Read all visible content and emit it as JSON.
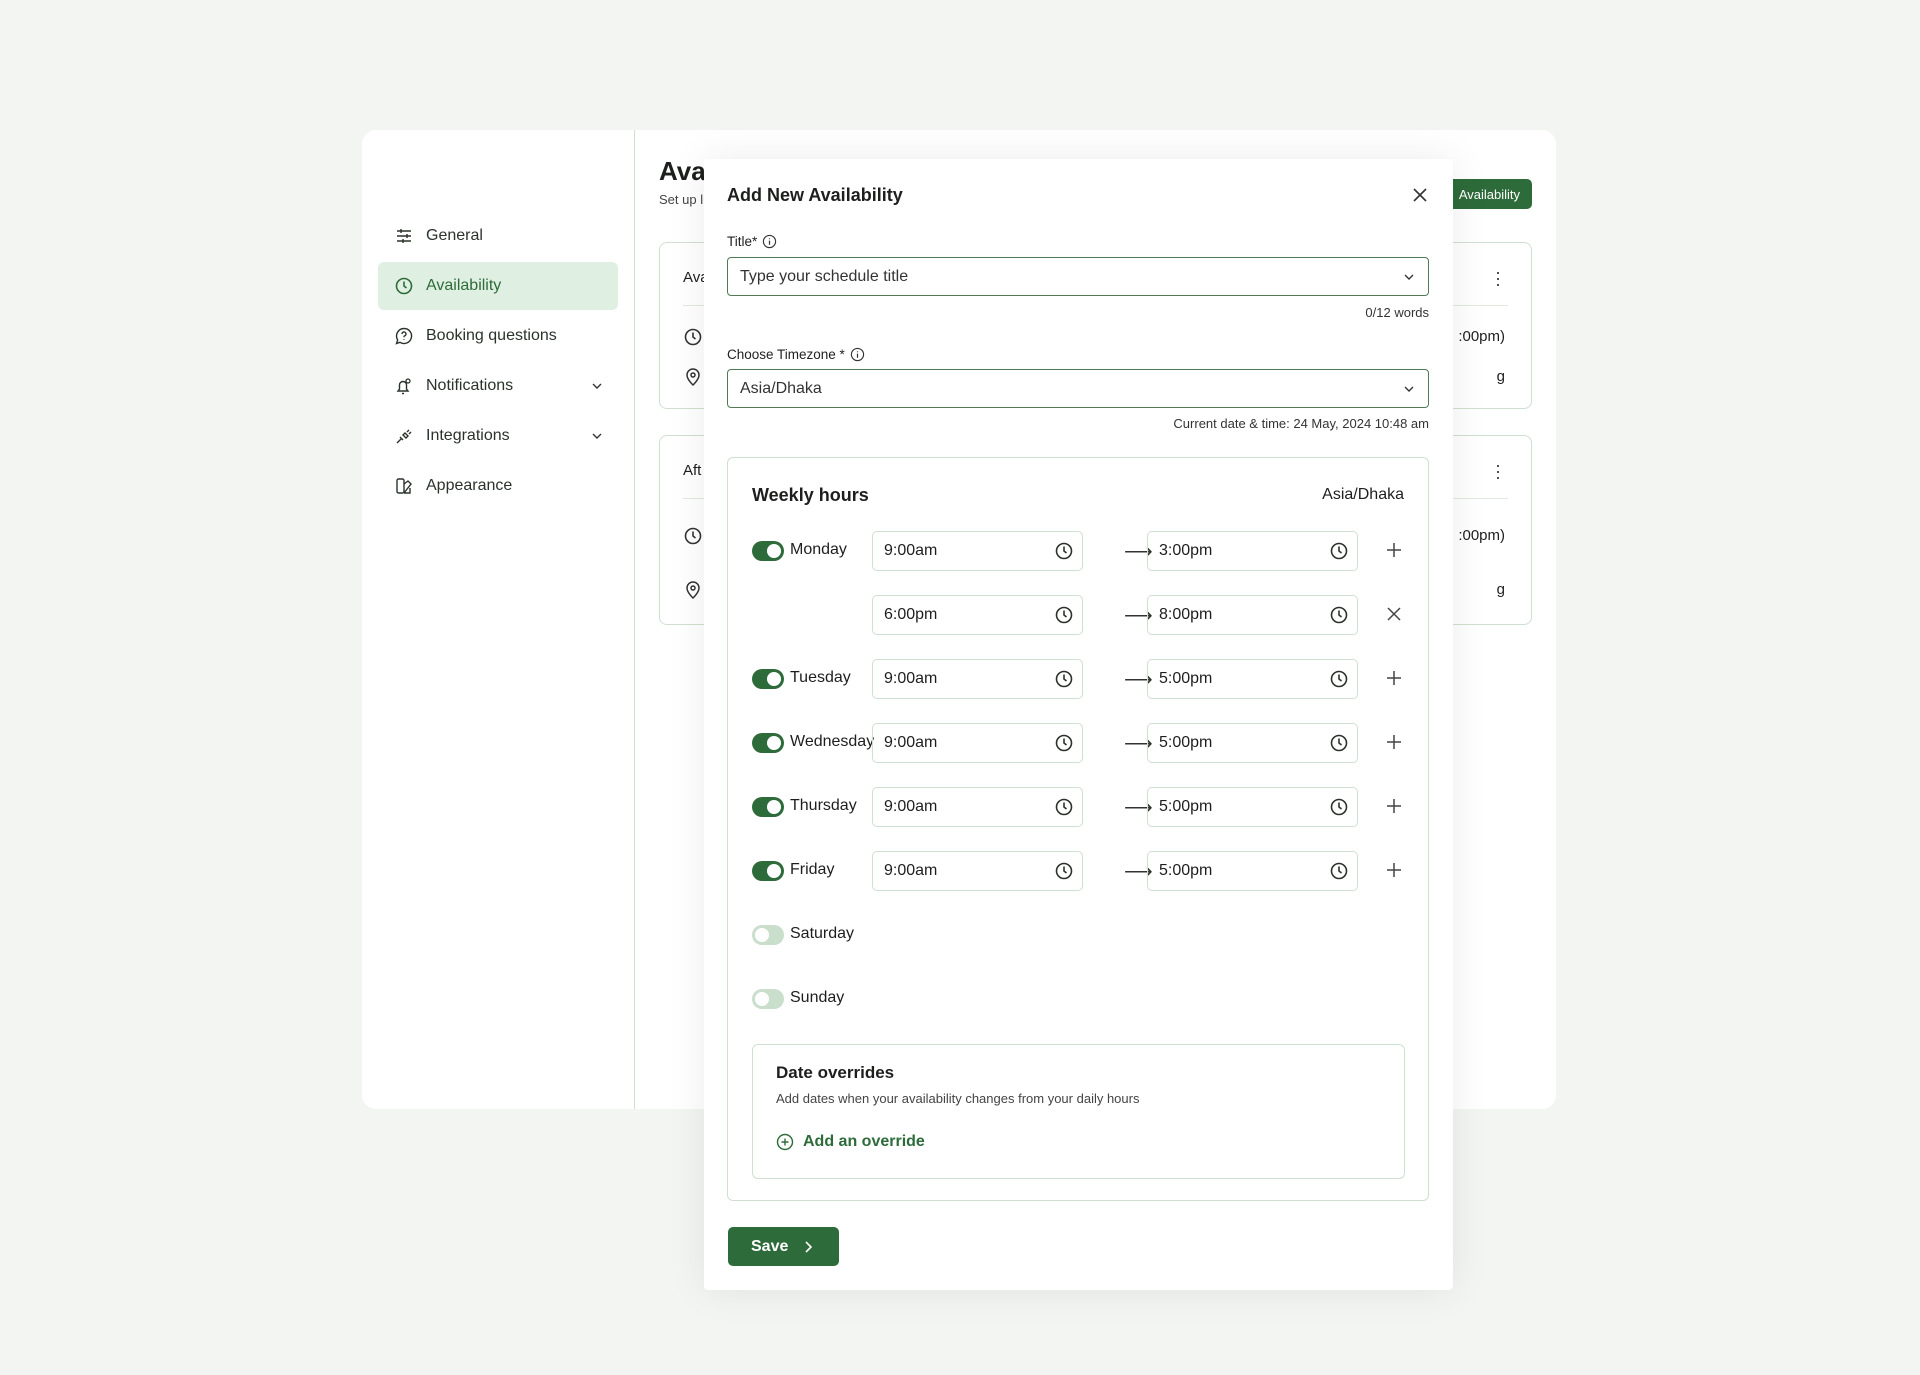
{
  "sidebar": {
    "items": [
      {
        "label": "General",
        "icon": "sliders-icon",
        "active": false,
        "chevron": false
      },
      {
        "label": "Availability",
        "icon": "clock-icon",
        "active": true,
        "chevron": false
      },
      {
        "label": "Booking questions",
        "icon": "question-chat-icon",
        "active": false,
        "chevron": false
      },
      {
        "label": "Notifications",
        "icon": "bell-icon",
        "active": false,
        "chevron": true
      },
      {
        "label": "Integrations",
        "icon": "plug-icon",
        "active": false,
        "chevron": true
      },
      {
        "label": "Appearance",
        "icon": "palette-icon",
        "active": false,
        "chevron": false
      }
    ]
  },
  "main": {
    "title": "Avai",
    "subtitle": "Set up l",
    "add_button": "Availability",
    "cards": [
      {
        "name": "Ava",
        "time": ":00pm)",
        "location": "g"
      },
      {
        "name": "Aft",
        "time": ":00pm)",
        "location": "g"
      }
    ]
  },
  "modal": {
    "title": "Add New Availability",
    "title_label": "Title*",
    "title_placeholder": "Type your schedule title",
    "word_count": "0/12 words",
    "timezone_label": "Choose Timezone *",
    "timezone_value": "Asia/Dhaka",
    "current_time": "Current date & time: 24 May, 2024 10:48 am",
    "weekly": {
      "heading": "Weekly hours",
      "timezone": "Asia/Dhaka",
      "days": [
        {
          "day": "Monday",
          "enabled": true,
          "slots": [
            {
              "start": "9:00am",
              "end": "3:00pm"
            },
            {
              "start": "6:00pm",
              "end": "8:00pm"
            }
          ]
        },
        {
          "day": "Tuesday",
          "enabled": true,
          "slots": [
            {
              "start": "9:00am",
              "end": "5:00pm"
            }
          ]
        },
        {
          "day": "Wednesday",
          "enabled": true,
          "slots": [
            {
              "start": "9:00am",
              "end": "5:00pm"
            }
          ]
        },
        {
          "day": "Thursday",
          "enabled": true,
          "slots": [
            {
              "start": "9:00am",
              "end": "5:00pm"
            }
          ]
        },
        {
          "day": "Friday",
          "enabled": true,
          "slots": [
            {
              "start": "9:00am",
              "end": "5:00pm"
            }
          ]
        },
        {
          "day": "Saturday",
          "enabled": false,
          "slots": []
        },
        {
          "day": "Sunday",
          "enabled": false,
          "slots": []
        }
      ]
    },
    "overrides": {
      "heading": "Date overrides",
      "description": "Add dates when your availability changes from your daily hours",
      "add_label": "Add an override"
    },
    "save_label": "Save"
  },
  "colors": {
    "accent": "#2e6b3a",
    "active_bg": "#dff0e2",
    "border": "#cfe0d1"
  }
}
